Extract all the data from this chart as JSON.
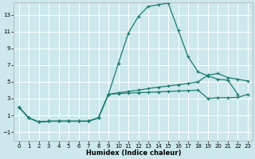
{
  "xlabel": "Humidex (Indice chaleur)",
  "bg_color": "#cce8ec",
  "grid_color": "#ffffff",
  "line_color": "#1a7a6e",
  "xlim": [
    -0.5,
    23.5
  ],
  "ylim": [
    -2.0,
    14.5
  ],
  "xticks": [
    0,
    1,
    2,
    3,
    4,
    5,
    6,
    7,
    8,
    9,
    10,
    11,
    12,
    13,
    14,
    15,
    16,
    17,
    18,
    19,
    20,
    21,
    22,
    23
  ],
  "yticks": [
    -1,
    1,
    3,
    5,
    7,
    9,
    11,
    13
  ],
  "line1_x": [
    0,
    1,
    2,
    3,
    4,
    5,
    6,
    7,
    8,
    9,
    10,
    11,
    12,
    13,
    14,
    15,
    16,
    17,
    18,
    19,
    20,
    21,
    22
  ],
  "line1_y": [
    2.0,
    0.7,
    0.2,
    0.3,
    0.3,
    0.3,
    0.3,
    0.3,
    0.7,
    3.5,
    7.2,
    10.8,
    12.8,
    14.0,
    14.2,
    14.4,
    11.2,
    8.0,
    6.2,
    5.7,
    5.3,
    5.2,
    3.5
  ],
  "line2_x": [
    0,
    1,
    2,
    3,
    4,
    5,
    6,
    7,
    8,
    9,
    10,
    11,
    12,
    13,
    14,
    15,
    16,
    17,
    18,
    19,
    20,
    21,
    22,
    23
  ],
  "line2_y": [
    2.0,
    0.7,
    0.2,
    0.3,
    0.3,
    0.3,
    0.3,
    0.3,
    0.7,
    3.5,
    3.7,
    3.85,
    4.0,
    4.2,
    4.35,
    4.5,
    4.65,
    4.8,
    5.0,
    5.8,
    6.0,
    5.5,
    5.3,
    5.1
  ],
  "line3_x": [
    0,
    1,
    2,
    3,
    4,
    5,
    6,
    7,
    8,
    9,
    10,
    11,
    12,
    13,
    14,
    15,
    16,
    17,
    18,
    19,
    20,
    21,
    22,
    23
  ],
  "line3_y": [
    2.0,
    0.7,
    0.2,
    0.3,
    0.3,
    0.3,
    0.3,
    0.3,
    0.7,
    3.5,
    3.6,
    3.65,
    3.7,
    3.75,
    3.8,
    3.85,
    3.9,
    3.95,
    4.0,
    3.0,
    3.1,
    3.1,
    3.15,
    3.5
  ]
}
